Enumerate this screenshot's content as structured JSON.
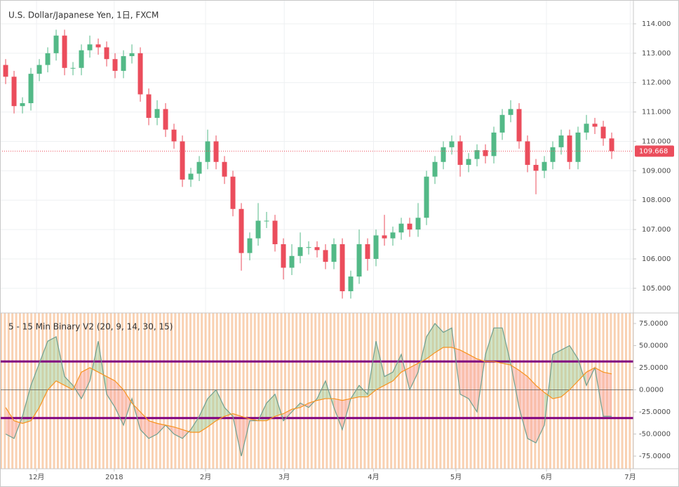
{
  "chart_data": [
    {
      "type": "candlestick",
      "title": "U.S. Dollar/Japanese Yen, 1日, FXCM",
      "open": [
        112.6,
        112.2,
        111.2,
        111.3,
        112.3,
        112.6,
        113.0,
        113.6,
        112.5,
        112.5,
        113.1,
        113.3,
        113.2,
        112.8,
        112.4,
        112.9,
        113.0,
        111.6,
        110.8,
        111.1,
        110.4,
        110.0,
        108.7,
        108.9,
        109.3,
        110.0,
        109.3,
        108.8,
        107.7,
        106.2,
        106.7,
        107.3,
        107.3,
        106.5,
        105.7,
        106.1,
        106.4,
        106.4,
        106.3,
        105.9,
        106.5,
        104.9,
        105.4,
        106.5,
        106.0,
        106.8,
        106.7,
        106.9,
        107.2,
        107.0,
        107.4,
        108.8,
        109.3,
        109.8,
        110.0,
        109.2,
        109.4,
        109.7,
        109.5,
        110.3,
        110.9,
        111.1,
        110.0,
        109.2,
        109.0,
        109.3,
        109.8,
        110.2,
        109.3,
        110.3,
        110.6,
        110.5,
        110.1
      ],
      "high": [
        112.8,
        112.4,
        111.5,
        112.5,
        112.8,
        113.2,
        113.8,
        113.8,
        112.7,
        113.3,
        113.6,
        113.5,
        113.4,
        113.0,
        113.1,
        113.3,
        113.2,
        111.8,
        111.4,
        111.3,
        110.6,
        110.2,
        109.1,
        109.5,
        110.4,
        110.2,
        109.5,
        109.0,
        107.9,
        106.9,
        107.9,
        107.6,
        107.5,
        106.7,
        106.5,
        106.9,
        106.6,
        106.6,
        106.5,
        106.7,
        106.7,
        105.6,
        107.0,
        106.7,
        107.0,
        107.5,
        107.1,
        107.4,
        107.4,
        107.9,
        109.0,
        109.5,
        110.0,
        110.2,
        110.2,
        109.6,
        109.9,
        109.9,
        110.5,
        111.1,
        111.4,
        111.3,
        110.2,
        109.4,
        109.5,
        110.0,
        110.4,
        110.4,
        110.5,
        110.9,
        110.8,
        110.7,
        110.3
      ],
      "low": [
        111.95,
        110.95,
        110.95,
        111.05,
        112.05,
        112.35,
        112.75,
        112.25,
        112.25,
        112.25,
        112.85,
        112.95,
        112.55,
        112.15,
        112.15,
        112.65,
        111.35,
        110.55,
        110.55,
        110.15,
        109.75,
        108.45,
        108.45,
        108.65,
        109.05,
        109.05,
        108.55,
        107.45,
        105.6,
        105.95,
        106.45,
        107.05,
        106.25,
        105.3,
        105.45,
        105.85,
        106.15,
        106.05,
        105.65,
        105.65,
        104.65,
        104.65,
        105.15,
        105.6,
        105.75,
        106.45,
        106.45,
        106.65,
        106.75,
        106.75,
        107.15,
        108.55,
        109.05,
        109.55,
        108.8,
        108.95,
        109.15,
        109.25,
        109.25,
        110.05,
        110.65,
        109.75,
        108.95,
        108.2,
        108.75,
        109.05,
        109.55,
        109.05,
        109.05,
        110.05,
        110.25,
        109.85,
        109.4
      ],
      "close": [
        112.2,
        111.2,
        111.3,
        112.3,
        112.6,
        113.0,
        113.6,
        112.5,
        112.5,
        113.1,
        113.3,
        113.2,
        112.8,
        112.4,
        112.9,
        113.0,
        111.6,
        110.8,
        111.1,
        110.4,
        110.0,
        108.7,
        108.9,
        109.3,
        110.0,
        109.3,
        108.8,
        107.7,
        106.2,
        106.7,
        107.3,
        107.3,
        106.5,
        105.7,
        106.1,
        106.4,
        106.4,
        106.3,
        105.9,
        106.5,
        104.9,
        105.4,
        106.5,
        106.0,
        106.8,
        106.7,
        106.9,
        107.2,
        107.0,
        107.4,
        108.8,
        109.3,
        109.8,
        110.0,
        109.2,
        109.4,
        109.7,
        109.5,
        110.3,
        110.9,
        111.1,
        110.0,
        109.2,
        109.0,
        109.3,
        109.8,
        110.2,
        109.3,
        110.3,
        110.6,
        110.5,
        110.1,
        109.668
      ],
      "color_up": "#53b987",
      "color_down": "#eb4d5c",
      "xlim": [
        -0.67,
        74.58
      ],
      "ylim": [
        104.16,
        114.62
      ],
      "yticks": [
        {
          "value": 105,
          "label": "105.000"
        },
        {
          "value": 106,
          "label": "106.000"
        },
        {
          "value": 107,
          "label": "107.000"
        },
        {
          "value": 108,
          "label": "108.000"
        },
        {
          "value": 109,
          "label": "109.000"
        },
        {
          "value": 110,
          "label": "110.000"
        },
        {
          "value": 111,
          "label": "111.000"
        },
        {
          "value": 112,
          "label": "112.000"
        },
        {
          "value": 113,
          "label": "113.000"
        },
        {
          "value": 114,
          "label": "114.000"
        }
      ],
      "last_price": 109.668,
      "grid": true
    },
    {
      "type": "oscillator",
      "title": "5 - 15 Min Binary V2  (20, 9, 14, 30, 15)",
      "series": [
        {
          "color": "#6f9f8f",
          "values": [
            -50,
            -55,
            -30,
            5,
            30,
            55,
            60,
            15,
            5,
            -10,
            10,
            55,
            -5,
            -20,
            -40,
            -10,
            -45,
            -55,
            -50,
            -40,
            -50,
            -55,
            -45,
            -30,
            -10,
            0,
            -20,
            -30,
            -75,
            -35,
            -35,
            -15,
            -5,
            -35,
            -25,
            -15,
            -20,
            -10,
            10,
            -20,
            -45,
            -10,
            5,
            -5,
            55,
            15,
            20,
            40,
            0,
            20,
            60,
            75,
            65,
            70,
            -5,
            -10,
            -25,
            40,
            70,
            70,
            30,
            -20,
            -55,
            -60,
            -40,
            40,
            45,
            50,
            35,
            5,
            25,
            -30,
            -30
          ]
        },
        {
          "color": "#f7931e",
          "values": [
            -20,
            -35,
            -38,
            -35,
            -20,
            0,
            10,
            5,
            0,
            20,
            25,
            20,
            15,
            10,
            0,
            -15,
            -25,
            -35,
            -38,
            -40,
            -42,
            -45,
            -48,
            -48,
            -42,
            -35,
            -30,
            -27,
            -30,
            -33,
            -35,
            -35,
            -30,
            -27,
            -22,
            -20,
            -15,
            -12,
            -10,
            -10,
            -12,
            -10,
            -8,
            -8,
            0,
            5,
            10,
            20,
            25,
            30,
            35,
            42,
            48,
            48,
            45,
            40,
            35,
            32,
            32,
            30,
            28,
            22,
            15,
            5,
            -3,
            -10,
            -8,
            0,
            10,
            20,
            25,
            20,
            18
          ]
        }
      ],
      "levels": [
        32,
        -32
      ],
      "level_color": "#800080",
      "xlim": [
        -0.67,
        74.58
      ],
      "ylim": [
        -89.3,
        86.9
      ],
      "yticks": [
        {
          "value": 75,
          "label": "75.0000"
        },
        {
          "value": 50,
          "label": "50.0000"
        },
        {
          "value": 25,
          "label": "25.0000"
        },
        {
          "value": 0,
          "label": "0.0000"
        },
        {
          "value": -25,
          "label": "-25.0000"
        },
        {
          "value": -50,
          "label": "-50.0000"
        },
        {
          "value": -75,
          "label": "-75.0000"
        }
      ],
      "xticks": [
        {
          "value": 3.67,
          "label": "12月"
        },
        {
          "value": 12.9,
          "label": "2018"
        },
        {
          "value": 23.75,
          "label": "2月"
        },
        {
          "value": 33.1,
          "label": "3月"
        },
        {
          "value": 43.7,
          "label": "4月"
        },
        {
          "value": 53.5,
          "label": "5月"
        },
        {
          "value": 64.25,
          "label": "6月"
        },
        {
          "value": 74.2,
          "label": "7月"
        }
      ]
    }
  ]
}
